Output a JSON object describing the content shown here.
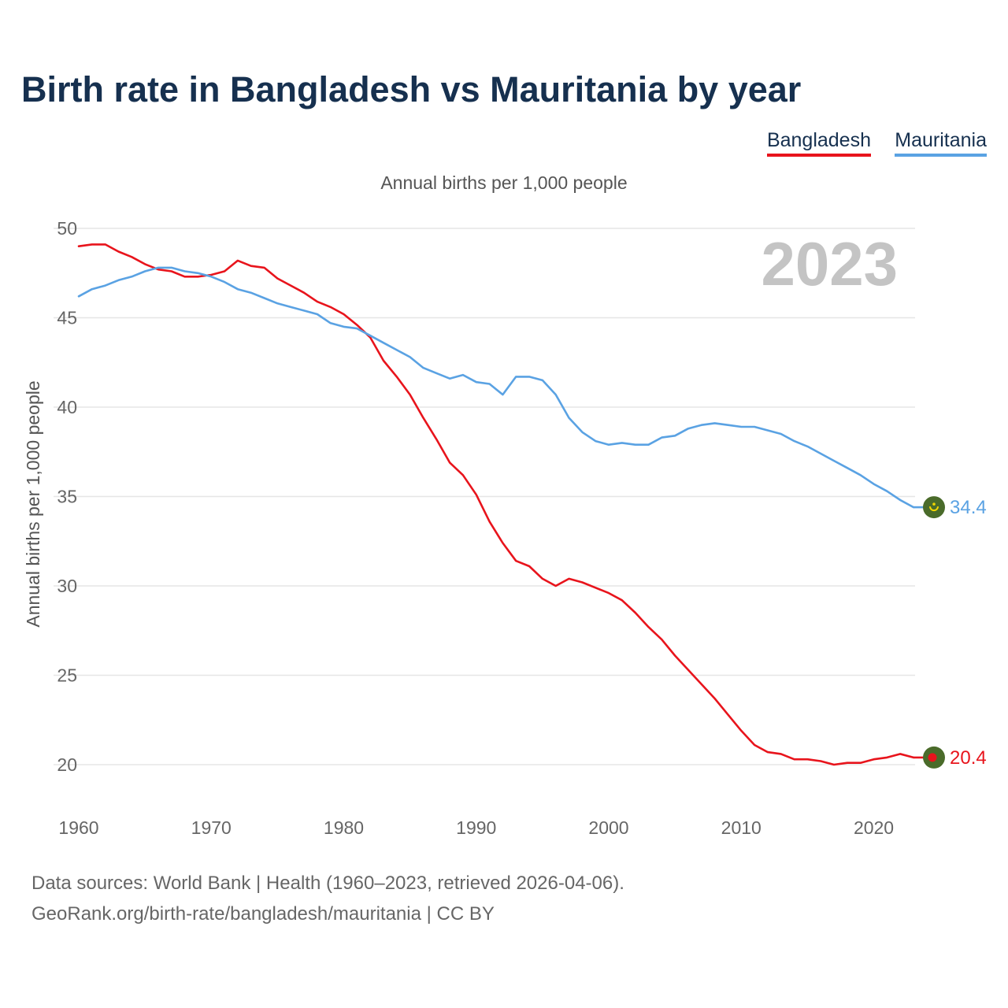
{
  "title": "Birth rate in Bangladesh vs Mauritania by year",
  "legend": [
    {
      "name": "Bangladesh",
      "color": "#e8141c"
    },
    {
      "name": "Mauritania",
      "color": "#5aa2e3"
    }
  ],
  "footer": {
    "sources": "Data sources: World Bank | Health (1960–2023, retrieved 2026-04-06).",
    "url": "GeoRank.org/birth-rate/bangladesh/mauritania | CC BY"
  },
  "chart_data": {
    "type": "line",
    "title": "Birth rate in Bangladesh vs Mauritania by year",
    "subtitle": "Annual births per 1,000 people",
    "ylabel": "Annual births per 1,000 people",
    "xlabel": "",
    "year_label": "2023",
    "xlim": [
      1960,
      2023
    ],
    "ylim": [
      20,
      50
    ],
    "grid": true,
    "legend_position": "top-right",
    "x_ticks": [
      1960,
      1970,
      1980,
      1990,
      2000,
      2010,
      2020
    ],
    "y_ticks": [
      20,
      25,
      30,
      35,
      40,
      45,
      50
    ],
    "x": [
      1960,
      1961,
      1962,
      1963,
      1964,
      1965,
      1966,
      1967,
      1968,
      1969,
      1970,
      1971,
      1972,
      1973,
      1974,
      1975,
      1976,
      1977,
      1978,
      1979,
      1980,
      1981,
      1982,
      1983,
      1984,
      1985,
      1986,
      1987,
      1988,
      1989,
      1990,
      1991,
      1992,
      1993,
      1994,
      1995,
      1996,
      1997,
      1998,
      1999,
      2000,
      2001,
      2002,
      2003,
      2004,
      2005,
      2006,
      2007,
      2008,
      2009,
      2010,
      2011,
      2012,
      2013,
      2014,
      2015,
      2016,
      2017,
      2018,
      2019,
      2020,
      2021,
      2022,
      2023
    ],
    "series": [
      {
        "name": "Bangladesh",
        "color": "#e8141c",
        "end_label": "20.4",
        "values": [
          49.0,
          49.1,
          49.1,
          48.7,
          48.4,
          48.0,
          47.7,
          47.6,
          47.3,
          47.3,
          47.4,
          47.6,
          48.2,
          47.9,
          47.8,
          47.2,
          46.8,
          46.4,
          45.9,
          45.6,
          45.2,
          44.6,
          43.9,
          42.6,
          41.7,
          40.7,
          39.4,
          38.2,
          36.9,
          36.2,
          35.1,
          33.6,
          32.4,
          31.4,
          31.1,
          30.4,
          30.0,
          30.4,
          30.2,
          29.9,
          29.6,
          29.2,
          28.5,
          27.7,
          27.0,
          26.1,
          25.3,
          24.5,
          23.7,
          22.8,
          21.9,
          21.1,
          20.7,
          20.6,
          20.3,
          20.3,
          20.2,
          20.0,
          20.1,
          20.1,
          20.3,
          20.4,
          20.6,
          20.4
        ]
      },
      {
        "name": "Mauritania",
        "color": "#5aa2e3",
        "end_label": "34.4",
        "values": [
          46.2,
          46.6,
          46.8,
          47.1,
          47.3,
          47.6,
          47.8,
          47.8,
          47.6,
          47.5,
          47.3,
          47.0,
          46.6,
          46.4,
          46.1,
          45.8,
          45.6,
          45.4,
          45.2,
          44.7,
          44.5,
          44.4,
          44.0,
          43.6,
          43.2,
          42.8,
          42.2,
          41.9,
          41.6,
          41.8,
          41.4,
          41.3,
          40.7,
          41.7,
          41.7,
          41.5,
          40.7,
          39.4,
          38.6,
          38.1,
          37.9,
          38.0,
          37.9,
          37.9,
          38.3,
          38.4,
          38.8,
          39.0,
          39.1,
          39.0,
          38.9,
          38.9,
          38.7,
          38.5,
          38.1,
          37.8,
          37.4,
          37.0,
          36.6,
          36.2,
          35.7,
          35.3,
          34.8,
          34.4
        ]
      }
    ]
  }
}
